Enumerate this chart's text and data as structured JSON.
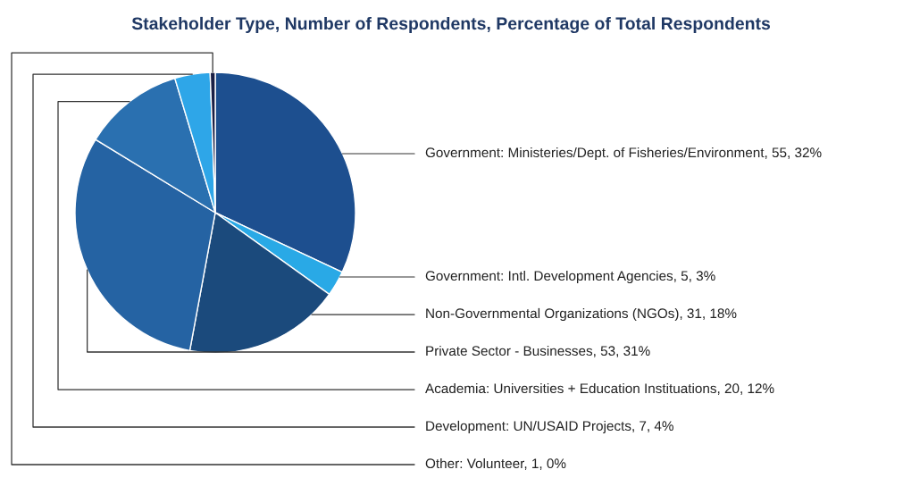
{
  "chart_data": {
    "type": "pie",
    "title": "Stakeholder Type, Number of Respondents, Percentage of Total Respondents",
    "categories": [
      "Government: Ministeries/Dept. of Fisheries/Environment",
      "Government: Intl. Development Agencies",
      "Non-Governmental Organizations (NGOs)",
      "Private Sector - Businesses",
      "Academia: Universities + Education Instituations",
      "Development: UN/USAID Projects",
      "Other: Volunteer"
    ],
    "values": [
      55,
      5,
      31,
      53,
      20,
      7,
      1
    ],
    "value_labels": [
      "55, 32%",
      "5, 3%",
      "31, 18%",
      "53, 31%",
      "20, 12%",
      "7, 4%",
      "1, 0%"
    ],
    "colors": [
      "#1d4f8f",
      "#29a9e6",
      "#1b4a7c",
      "#2563a3",
      "#2a70b0",
      "#2ea6e8",
      "#1a1f45"
    ]
  }
}
